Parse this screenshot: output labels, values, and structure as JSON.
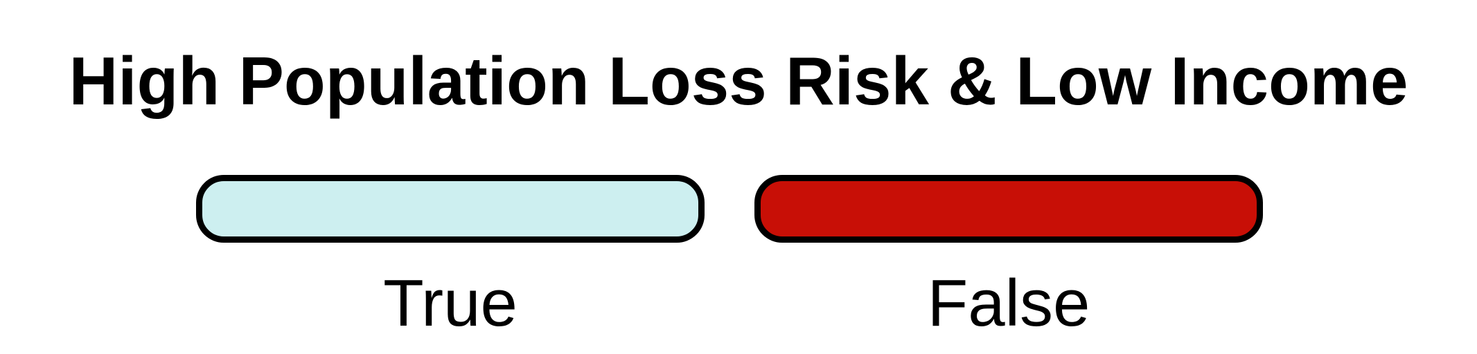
{
  "legend": {
    "title": "High Population Loss Risk & Low Income",
    "items": [
      {
        "label": "True",
        "color": "#cdeff0"
      },
      {
        "label": "False",
        "color": "#c80f06"
      }
    ]
  }
}
